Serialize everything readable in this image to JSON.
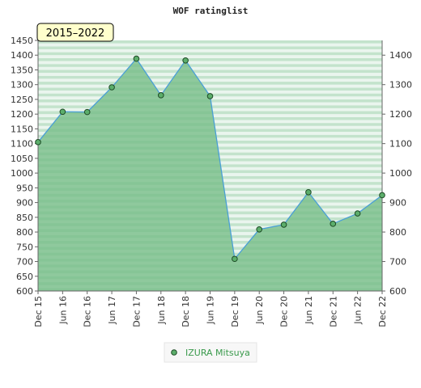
{
  "chart_data": {
    "type": "area",
    "title": "WOF ratinglist",
    "period_label": "2015–2022",
    "categories": [
      "Dec 15",
      "Jun 16",
      "Dec 16",
      "Jun 17",
      "Dec 17",
      "Jun 18",
      "Dec 18",
      "Jun 19",
      "Dec 19",
      "Jun 20",
      "Dec 20",
      "Jun 21",
      "Dec 21",
      "Jun 22",
      "Dec 22"
    ],
    "series": [
      {
        "name": "IZURA Mitsuya",
        "values": [
          1105,
          1208,
          1207,
          1291,
          1388,
          1264,
          1382,
          1261,
          709,
          809,
          825,
          935,
          828,
          863,
          925
        ]
      }
    ],
    "left_axis": {
      "ylim": [
        600,
        1450
      ],
      "ticks": [
        600,
        650,
        700,
        750,
        800,
        850,
        900,
        950,
        1000,
        1050,
        1100,
        1150,
        1200,
        1250,
        1300,
        1350,
        1400,
        1450
      ]
    },
    "right_axis": {
      "ticks": [
        600,
        700,
        800,
        900,
        1000,
        1100,
        1200,
        1300,
        1400
      ]
    },
    "grid": "horizontal stripes",
    "legend_position": "bottom-center",
    "colors": {
      "line": "#4a9fd6",
      "fill": "#74bd86",
      "marker": "#5cae6b",
      "marker_stroke": "#1d4a25",
      "stripe_a": "#eaf5ee",
      "stripe_b": "#c3e3cc",
      "badge_bg": "#ffffcc",
      "badge_text": "#000000",
      "legend_text": "#3a9a4c"
    }
  }
}
